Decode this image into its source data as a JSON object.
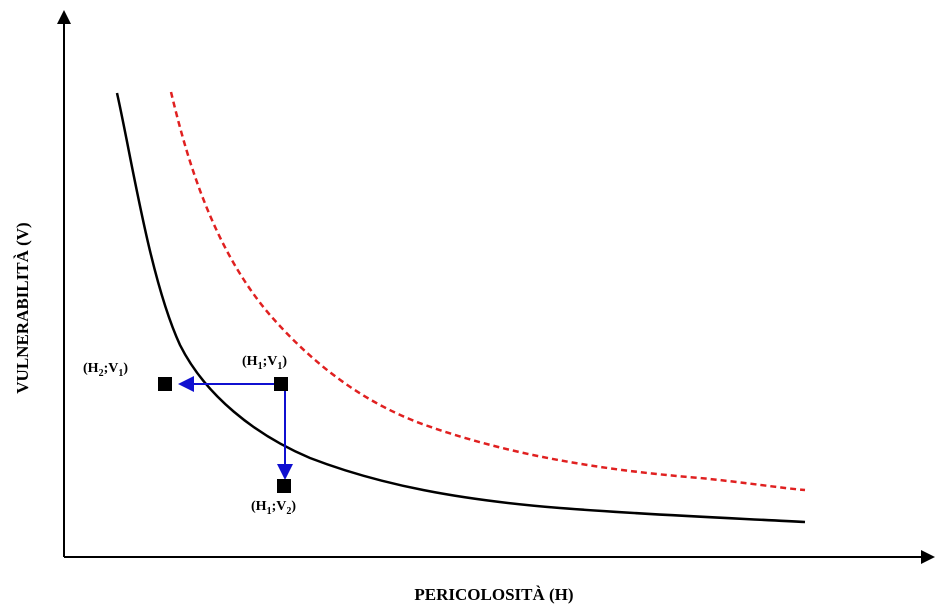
{
  "axes": {
    "x_label": "PERICOLOSITÀ (H)",
    "y_label": "VULNERABILITÀ (V)"
  },
  "points": [
    {
      "id": "h1v1",
      "prefix": "(H",
      "sub1": "1",
      "mid": ";V",
      "sub2": "1",
      "suffix": ")"
    },
    {
      "id": "h2v1",
      "prefix": "(H",
      "sub1": "2",
      "mid": ";V",
      "sub2": "1",
      "suffix": ")"
    },
    {
      "id": "h1v2",
      "prefix": "(H",
      "sub1": "1",
      "mid": ";V",
      "sub2": "2",
      "suffix": ")"
    }
  ],
  "colors": {
    "axis": "#000000",
    "solid_curve": "#000000",
    "dashed_curve": "#e02020",
    "arrows": "#1010d0",
    "markers": "#000000"
  }
}
